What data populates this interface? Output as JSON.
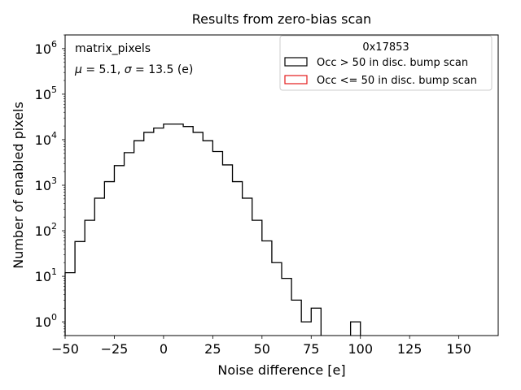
{
  "chart_data": {
    "type": "histogram",
    "title": "Results from zero-bias scan",
    "xlabel": "Noise difference [e]",
    "ylabel": "Number of enabled pixels",
    "xlim": [
      -50,
      170
    ],
    "ylim": [
      0.5,
      2000000
    ],
    "yscale": "log",
    "x_ticks": [
      -50,
      -25,
      0,
      25,
      50,
      75,
      100,
      125,
      150
    ],
    "x_tick_labels": [
      "−50",
      "−25",
      "0",
      "25",
      "50",
      "75",
      "100",
      "125",
      "150"
    ],
    "y_ticks": [
      1,
      10,
      100,
      1000,
      10000,
      100000,
      1000000
    ],
    "y_tick_labels": [
      {
        "base": "10",
        "exp": "0"
      },
      {
        "base": "10",
        "exp": "1"
      },
      {
        "base": "10",
        "exp": "2"
      },
      {
        "base": "10",
        "exp": "3"
      },
      {
        "base": "10",
        "exp": "4"
      },
      {
        "base": "10",
        "exp": "5"
      },
      {
        "base": "10",
        "exp": "6"
      }
    ],
    "annotations": {
      "line1": "matrix_pixels",
      "stats_mu_symbol": "μ",
      "stats_mu_text": " = 5.1, ",
      "stats_sigma_symbol": "σ",
      "stats_sigma_text": " = 13.5 (e)"
    },
    "legend": {
      "title": "0x17853",
      "placement": "top-right",
      "entries": [
        {
          "label": "Occ > 50 in disc. bump scan",
          "color": "#000000"
        },
        {
          "label": "Occ <= 50 in disc. bump scan",
          "color": "#e41a1c"
        }
      ]
    },
    "series": [
      {
        "name": "Occ > 50 in disc. bump scan",
        "color": "#000000",
        "bin_edges": [
          -50,
          -45,
          -40,
          -35,
          -30,
          -25,
          -20,
          -15,
          -10,
          -5,
          0,
          5,
          10,
          15,
          20,
          25,
          30,
          35,
          40,
          45,
          50,
          55,
          60,
          65,
          70,
          75,
          80,
          85,
          90,
          95,
          100
        ],
        "counts": [
          12,
          58,
          170,
          520,
          1200,
          2700,
          5200,
          9500,
          14500,
          18000,
          22000,
          22000,
          19500,
          14500,
          9500,
          5500,
          2800,
          1200,
          520,
          170,
          60,
          20,
          9,
          3,
          1,
          2,
          0,
          0,
          0,
          1
        ]
      },
      {
        "name": "Occ <= 50 in disc. bump scan",
        "color": "#e41a1c",
        "bin_edges": [],
        "counts": []
      }
    ]
  }
}
